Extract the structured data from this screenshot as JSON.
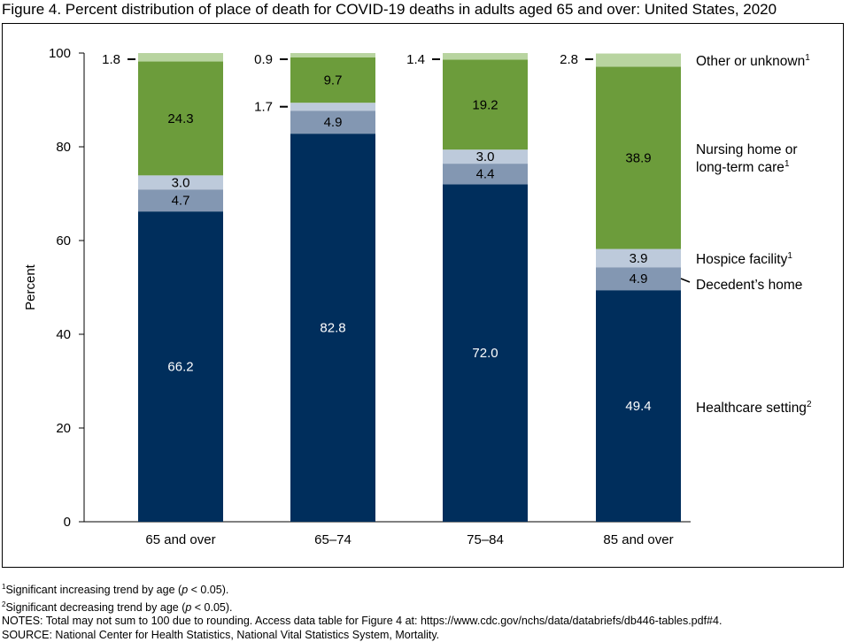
{
  "title": "Figure 4. Percent distribution of place of death for COVID-19 deaths in adults aged 65 and over: United States, 2020",
  "chart_data": {
    "type": "bar",
    "stacked": true,
    "ylabel": "Percent",
    "ylim": [
      0,
      100
    ],
    "yticks": [
      0,
      20,
      40,
      60,
      80,
      100
    ],
    "grid": false,
    "legend": "right (labels aligned with segments)",
    "categories": [
      "65 and over",
      "65–74",
      "75–84",
      "85 and over"
    ],
    "series": [
      {
        "name": "Healthcare setting",
        "sup": "2",
        "color": "#002e5c",
        "label_color": "#ffffff",
        "values": [
          66.2,
          82.8,
          72.0,
          49.4
        ],
        "labels": [
          "66.2",
          "82.8",
          "72.0",
          "49.4"
        ]
      },
      {
        "name": "Decedent’s home",
        "sup": "",
        "color": "#8397b2",
        "label_color": "#000000",
        "values": [
          4.7,
          4.9,
          4.4,
          4.9
        ],
        "labels": [
          "4.7",
          "4.9",
          "4.4",
          "4.9"
        ]
      },
      {
        "name": "Hospice facility",
        "sup": "1",
        "color": "#bdcadb",
        "label_color": "#000000",
        "values": [
          3.0,
          1.7,
          3.0,
          3.9
        ],
        "labels": [
          "3.0",
          "1.7",
          "3.0",
          "3.9"
        ]
      },
      {
        "name": "Nursing home or long-term care",
        "name_lines": [
          "Nursing home or",
          "long-term care"
        ],
        "sup": "1",
        "color": "#6c9c3b",
        "label_color": "#000000",
        "values": [
          24.3,
          9.7,
          19.2,
          38.9
        ],
        "labels": [
          "24.3",
          "9.7",
          "19.2",
          "38.9"
        ]
      },
      {
        "name": "Other or unknown",
        "sup": "1",
        "color": "#b8d4a0",
        "label_color": "#000000",
        "values": [
          1.8,
          0.9,
          1.4,
          2.8
        ],
        "labels": [
          "1.8",
          "0.9",
          "1.4",
          "2.8"
        ]
      }
    ]
  },
  "notes": {
    "fn1_sup": "1",
    "fn1_a": "Significant increasing trend by age (",
    "fn1_p": "p",
    "fn1_b": " < 0.05).",
    "fn2_sup": "2",
    "fn2_a": "Significant decreasing trend by age (",
    "fn2_p": "p",
    "fn2_b": " < 0.05).",
    "notes_line": "NOTES: Total may not sum to 100 due to rounding. Access data table for Figure 4 at: https://www.cdc.gov/nchs/data/databriefs/db446-tables.pdf#4.",
    "source_line": "SOURCE: National Center for Health Statistics, National Vital Statistics System, Mortality."
  }
}
